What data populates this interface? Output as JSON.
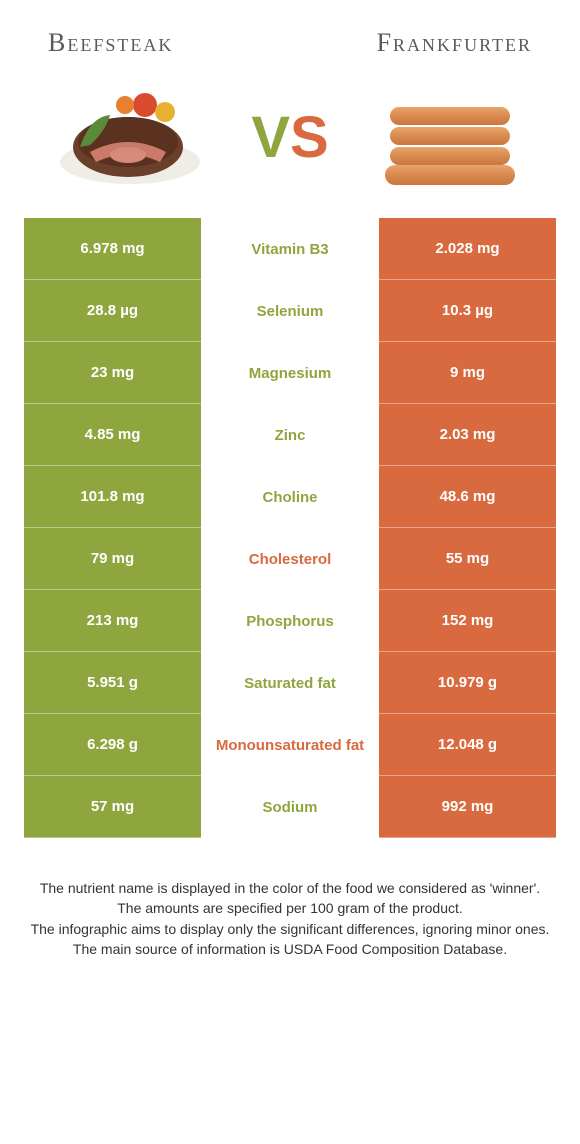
{
  "food1": {
    "name": "Beefsteak",
    "color": "#8fa63f"
  },
  "food2": {
    "name": "Frankfurter",
    "color": "#d96a3f"
  },
  "vs": {
    "v": "V",
    "s": "S"
  },
  "table": {
    "rows": [
      {
        "name": "Vitamin B3",
        "left": "6.978 mg",
        "right": "2.028 mg",
        "winner": "left"
      },
      {
        "name": "Selenium",
        "left": "28.8 µg",
        "right": "10.3 µg",
        "winner": "left"
      },
      {
        "name": "Magnesium",
        "left": "23 mg",
        "right": "9 mg",
        "winner": "left"
      },
      {
        "name": "Zinc",
        "left": "4.85 mg",
        "right": "2.03 mg",
        "winner": "left"
      },
      {
        "name": "Choline",
        "left": "101.8 mg",
        "right": "48.6 mg",
        "winner": "left"
      },
      {
        "name": "Cholesterol",
        "left": "79 mg",
        "right": "55 mg",
        "winner": "right"
      },
      {
        "name": "Phosphorus",
        "left": "213 mg",
        "right": "152 mg",
        "winner": "left"
      },
      {
        "name": "Saturated fat",
        "left": "5.951 g",
        "right": "10.979 g",
        "winner": "left"
      },
      {
        "name": "Monounsaturated fat",
        "left": "6.298 g",
        "right": "12.048 g",
        "winner": "right"
      },
      {
        "name": "Sodium",
        "left": "57 mg",
        "right": "992 mg",
        "winner": "left"
      }
    ]
  },
  "footer": {
    "l1": "The nutrient name is displayed in the color of the food we considered as 'winner'.",
    "l2": "The amounts are specified per 100 gram of the product.",
    "l3": "The infographic aims to display only the significant differences, ignoring minor ones.",
    "l4": "The main source of information is USDA Food Composition Database."
  }
}
